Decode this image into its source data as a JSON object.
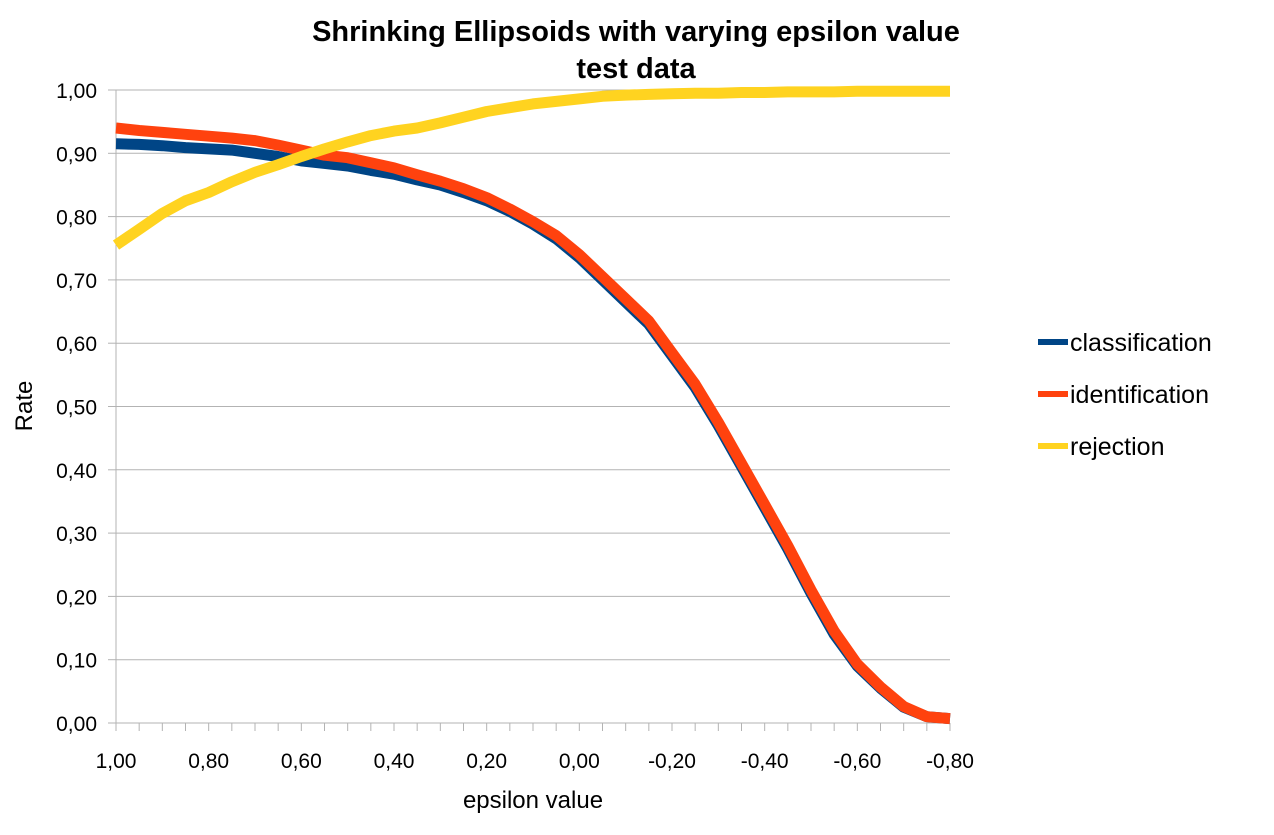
{
  "chart_data": {
    "type": "line",
    "title": "Shrinking Ellipsoids with varying epsilon value",
    "subtitle": "test data",
    "xlabel": "epsilon value",
    "ylabel": "Rate",
    "xlim": [
      1.0,
      -0.8
    ],
    "ylim": [
      0.0,
      1.0
    ],
    "x_ticks": [
      "1,00",
      "0,80",
      "0,60",
      "0,40",
      "0,20",
      "0,00",
      "-0,20",
      "-0,40",
      "-0,60",
      "-0,80"
    ],
    "y_ticks": [
      "0,00",
      "0,10",
      "0,20",
      "0,30",
      "0,40",
      "0,50",
      "0,60",
      "0,70",
      "0,80",
      "0,90",
      "1,00"
    ],
    "grid": "horizontal",
    "legend_position": "right",
    "x": [
      1.0,
      0.95,
      0.9,
      0.85,
      0.8,
      0.75,
      0.7,
      0.65,
      0.6,
      0.55,
      0.5,
      0.45,
      0.4,
      0.35,
      0.3,
      0.25,
      0.2,
      0.15,
      0.1,
      0.05,
      0.0,
      -0.05,
      -0.1,
      -0.15,
      -0.2,
      -0.25,
      -0.3,
      -0.35,
      -0.4,
      -0.45,
      -0.5,
      -0.55,
      -0.6,
      -0.65,
      -0.7,
      -0.75,
      -0.8
    ],
    "series": [
      {
        "name": "classification",
        "color": "#004586",
        "values": [
          0.915,
          0.914,
          0.912,
          0.909,
          0.907,
          0.905,
          0.9,
          0.895,
          0.888,
          0.884,
          0.88,
          0.873,
          0.867,
          0.858,
          0.85,
          0.838,
          0.825,
          0.808,
          0.788,
          0.765,
          0.735,
          0.7,
          0.665,
          0.63,
          0.58,
          0.53,
          0.47,
          0.405,
          0.34,
          0.275,
          0.205,
          0.14,
          0.09,
          0.055,
          0.025,
          0.01,
          0.007
        ]
      },
      {
        "name": "identification",
        "color": "#ff420e",
        "values": [
          0.94,
          0.936,
          0.933,
          0.93,
          0.927,
          0.924,
          0.92,
          0.913,
          0.905,
          0.897,
          0.893,
          0.885,
          0.877,
          0.866,
          0.856,
          0.844,
          0.83,
          0.812,
          0.792,
          0.77,
          0.74,
          0.705,
          0.67,
          0.635,
          0.585,
          0.535,
          0.475,
          0.41,
          0.345,
          0.28,
          0.21,
          0.145,
          0.093,
          0.057,
          0.026,
          0.01,
          0.007
        ]
      },
      {
        "name": "rejection",
        "color": "#ffd320",
        "values": [
          0.755,
          0.78,
          0.805,
          0.825,
          0.838,
          0.855,
          0.87,
          0.882,
          0.895,
          0.907,
          0.918,
          0.928,
          0.935,
          0.94,
          0.948,
          0.957,
          0.966,
          0.972,
          0.978,
          0.982,
          0.986,
          0.99,
          0.992,
          0.993,
          0.994,
          0.995,
          0.995,
          0.996,
          0.996,
          0.997,
          0.997,
          0.997,
          0.998,
          0.998,
          0.998,
          0.998,
          0.998
        ]
      }
    ]
  }
}
